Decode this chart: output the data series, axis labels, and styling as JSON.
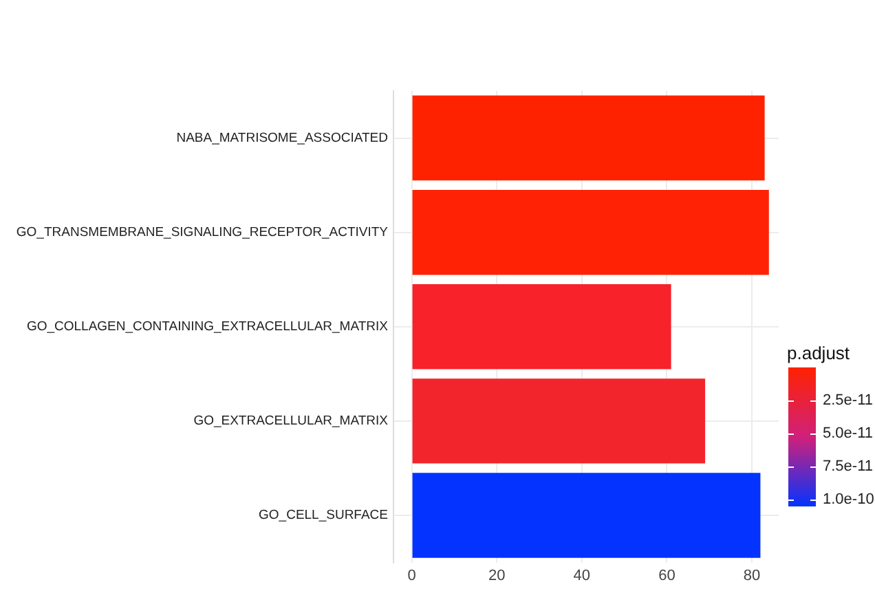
{
  "chart_data": {
    "type": "bar",
    "orientation": "horizontal",
    "categories": [
      "NABA_MATRISOME_ASSOCIATED",
      "GO_TRANSMEMBRANE_SIGNALING_RECEPTOR_ACTIVITY",
      "GO_COLLAGEN_CONTAINING_EXTRACELLULAR_MATRIX",
      "GO_EXTRACELLULAR_MATRIX",
      "GO_CELL_SURFACE"
    ],
    "values": [
      83,
      84,
      61,
      69,
      82
    ],
    "colors": [
      "#ff2200",
      "#ff2205",
      "#f7222a",
      "#f2252d",
      "#0433ff"
    ],
    "xlim": [
      -4.3,
      86.3
    ],
    "xticks": [
      0,
      20,
      40,
      60,
      80
    ],
    "grid": true,
    "clabel": "p.adjust",
    "clim": [
      0,
      1.05e-10
    ],
    "cticks": [
      {
        "value": 2.5e-11,
        "label": "2.5e-11"
      },
      {
        "value": 5e-11,
        "label": "5.0e-11"
      },
      {
        "value": 7.5e-11,
        "label": "7.5e-11"
      },
      {
        "value": 1e-10,
        "label": "1.0e-10"
      }
    ]
  }
}
